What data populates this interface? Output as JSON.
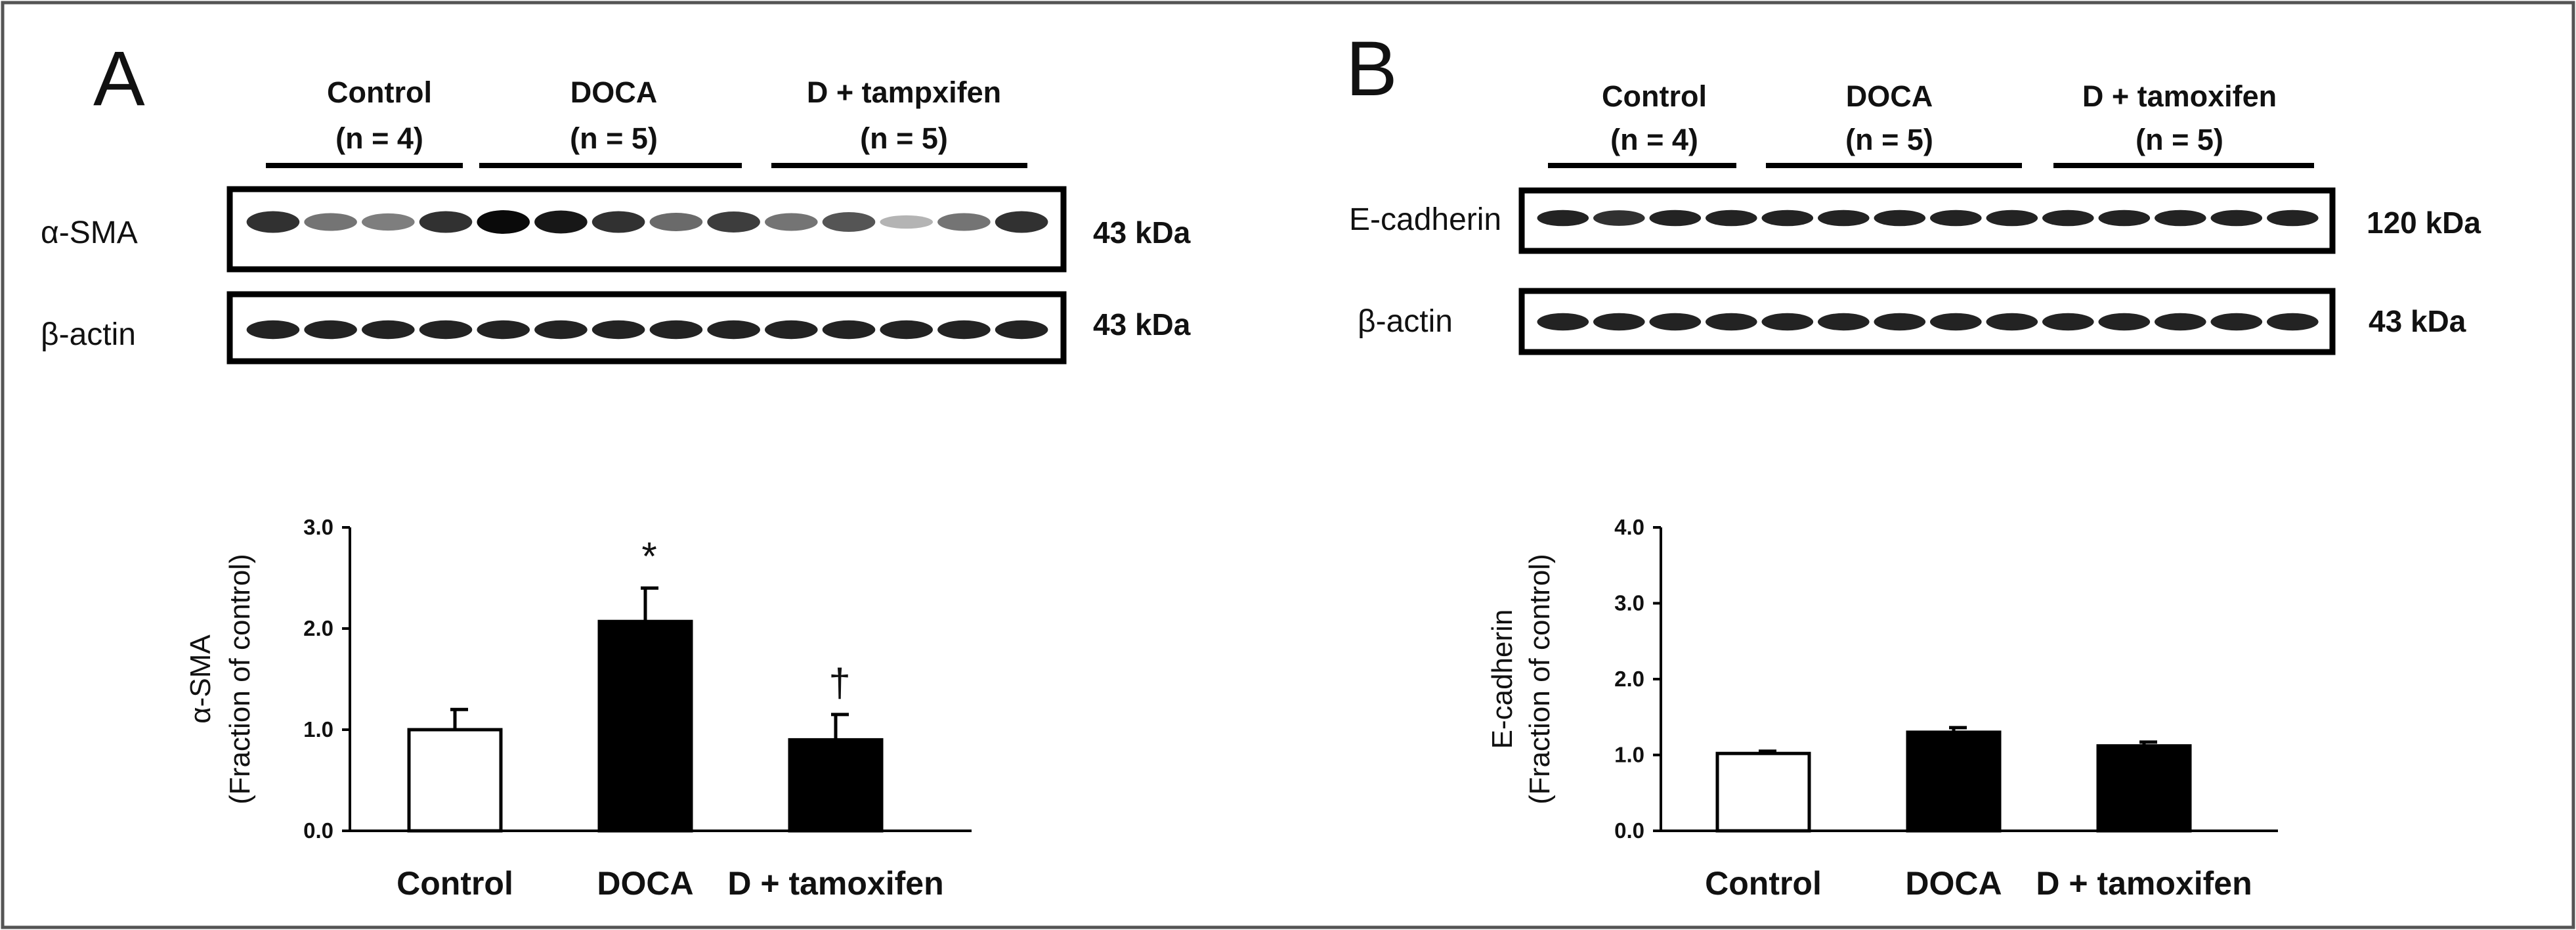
{
  "panels": [
    {
      "letter": "A",
      "groups": [
        {
          "name": "Control",
          "n": "(n = 4)"
        },
        {
          "name": "DOCA",
          "n": "(n = 5)"
        },
        {
          "name": "D + tampxifen",
          "n": "(n = 5)"
        }
      ],
      "blots": [
        {
          "label": "α-SMA",
          "size": "43 kDa",
          "lanes": [
            0.85,
            0.55,
            0.5,
            0.85,
            1.0,
            0.95,
            0.85,
            0.6,
            0.8,
            0.55,
            0.7,
            0.2,
            0.55,
            0.85
          ]
        },
        {
          "label": "β-actin",
          "size": "43 kDa",
          "lanes": [
            0.9,
            0.9,
            0.9,
            0.9,
            0.9,
            0.9,
            0.9,
            0.9,
            0.9,
            0.9,
            0.9,
            0.9,
            0.9,
            0.9
          ]
        }
      ]
    },
    {
      "letter": "B",
      "groups": [
        {
          "name": "Control",
          "n": "(n = 4)"
        },
        {
          "name": "DOCA",
          "n": "(n = 5)"
        },
        {
          "name": "D + tamoxifen",
          "n": "(n = 5)"
        }
      ],
      "blots": [
        {
          "label": "E-cadherin",
          "size": "120 kDa",
          "lanes": [
            0.9,
            0.85,
            0.9,
            0.9,
            0.9,
            0.9,
            0.9,
            0.9,
            0.9,
            0.9,
            0.9,
            0.9,
            0.9,
            0.9
          ]
        },
        {
          "label": "β-actin",
          "size": "43 kDa",
          "lanes": [
            0.9,
            0.9,
            0.9,
            0.9,
            0.9,
            0.9,
            0.9,
            0.9,
            0.9,
            0.9,
            0.9,
            0.9,
            0.9,
            0.9
          ]
        }
      ]
    }
  ],
  "chart_data": [
    {
      "type": "bar",
      "categories": [
        "Control",
        "DOCA",
        "D + tamoxifen"
      ],
      "values": [
        1.0,
        2.07,
        0.9
      ],
      "errors": [
        0.2,
        0.33,
        0.25
      ],
      "fills": [
        "#ffffff",
        "#000000",
        "#000000"
      ],
      "annotations": [
        "",
        "*",
        "†"
      ],
      "ylabel_line1": "α-SMA",
      "ylabel_line2": "(Fraction of control)",
      "ylim": [
        0,
        3.0
      ],
      "yticks": [
        "0.0",
        "1.0",
        "2.0",
        "3.0"
      ],
      "grid": false
    },
    {
      "type": "bar",
      "categories": [
        "Control",
        "DOCA",
        "D + tamoxifen"
      ],
      "values": [
        1.02,
        1.3,
        1.12
      ],
      "errors": [
        0.03,
        0.06,
        0.05
      ],
      "fills": [
        "#ffffff",
        "#000000",
        "#000000"
      ],
      "annotations": [
        "",
        "",
        ""
      ],
      "ylabel_line1": "E-cadherin",
      "ylabel_line2": "(Fraction of control)",
      "ylim": [
        0,
        4.0
      ],
      "yticks": [
        "0.0",
        "1.0",
        "2.0",
        "3.0",
        "4.0"
      ],
      "grid": false
    }
  ]
}
